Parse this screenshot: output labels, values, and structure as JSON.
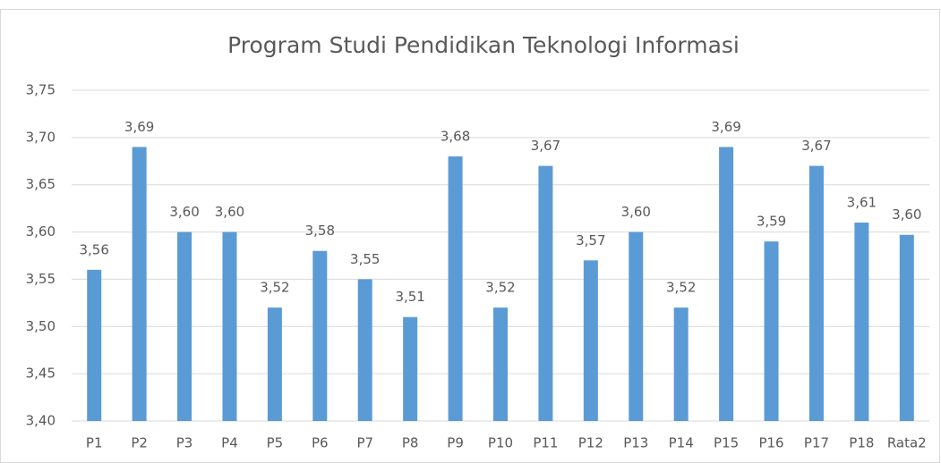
{
  "chart_data": {
    "type": "bar",
    "title": "Program Studi Pendidikan Teknologi Informasi",
    "categories": [
      "P1",
      "P2",
      "P3",
      "P4",
      "P5",
      "P6",
      "P7",
      "P8",
      "P9",
      "P10",
      "P11",
      "P12",
      "P13",
      "P14",
      "P15",
      "P16",
      "P17",
      "P18",
      "Rata2"
    ],
    "values": [
      3.56,
      3.69,
      3.6,
      3.6,
      3.52,
      3.58,
      3.55,
      3.51,
      3.68,
      3.52,
      3.67,
      3.57,
      3.6,
      3.52,
      3.69,
      3.59,
      3.67,
      3.61,
      3.597
    ],
    "value_labels": [
      "3,56",
      "3,69",
      "3,60",
      "3,60",
      "3,52",
      "3,58",
      "3,55",
      "3,51",
      "3,68",
      "3,52",
      "3,67",
      "3,57",
      "3,60",
      "3,52",
      "3,69",
      "3,59",
      "3,67",
      "3,61",
      "3,60"
    ],
    "color": "#5b9bd5",
    "ylim": [
      3.4,
      3.75
    ],
    "yticks": [
      {
        "value": 3.4,
        "label": "3,40"
      },
      {
        "value": 3.45,
        "label": "3,45"
      },
      {
        "value": 3.5,
        "label": "3,50"
      },
      {
        "value": 3.55,
        "label": "3,55"
      },
      {
        "value": 3.6,
        "label": "3,60"
      },
      {
        "value": 3.65,
        "label": "3,65"
      },
      {
        "value": 3.7,
        "label": "3,70"
      },
      {
        "value": 3.75,
        "label": "3,75"
      }
    ],
    "grid": true
  }
}
